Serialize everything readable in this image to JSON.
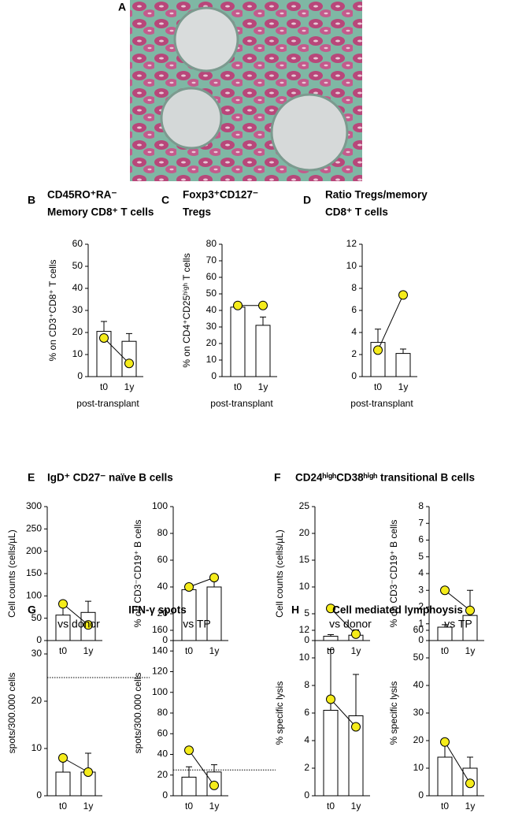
{
  "figure_label": "A",
  "chart_data": [
    {
      "type": "bar",
      "panel": "B",
      "title": [
        "CD45RO⁺RA⁻",
        "Memory CD8⁺ T cells"
      ],
      "ylabel": "% on CD3⁺CD8⁺ T cells",
      "xlabel": "post-transplant",
      "categories": [
        "t0",
        "1y"
      ],
      "values": [
        20.5,
        16
      ],
      "errors": [
        4.5,
        3.5
      ],
      "points": [
        17.5,
        6
      ],
      "color": "#ffffff",
      "point_color": "#f5ec1b",
      "ylim": [
        0,
        60
      ],
      "yticks": [
        0,
        10,
        20,
        30,
        40,
        50,
        60
      ]
    },
    {
      "type": "bar",
      "panel": "C",
      "title": [
        "Foxp3⁺CD127⁻",
        "Tregs"
      ],
      "ylabel": "% on CD4⁺CD25ʰⁱᵍʰ T cells",
      "xlabel": "post-transplant",
      "categories": [
        "t0",
        "1y"
      ],
      "values": [
        42,
        31
      ],
      "errors": [
        3,
        5
      ],
      "points": [
        43,
        43
      ],
      "color": "#ffffff",
      "point_color": "#f5ec1b",
      "ylim": [
        0,
        80
      ],
      "yticks": [
        0,
        10,
        20,
        30,
        40,
        50,
        60,
        70,
        80
      ]
    },
    {
      "type": "bar",
      "panel": "D",
      "title": [
        "Ratio Tregs/memory",
        "CD8⁺ T cells"
      ],
      "xlabel": "post-transplant",
      "categories": [
        "t0",
        "1y"
      ],
      "values": [
        3.1,
        2.1
      ],
      "errors": [
        1.2,
        0.4
      ],
      "points": [
        2.4,
        7.4
      ],
      "color": "#ffffff",
      "point_color": "#f5ec1b",
      "ylim": [
        0,
        12
      ],
      "yticks": [
        0,
        2,
        4,
        6,
        8,
        10,
        12
      ]
    },
    {
      "type": "bar",
      "panel": "E",
      "title": [
        "IgD⁺ CD27⁻ naïve B cells"
      ],
      "ylabel": "Cell counts (cells/µL)",
      "categories": [
        "t0",
        "1y"
      ],
      "values": [
        57,
        63
      ],
      "errors": [
        20,
        25
      ],
      "points": [
        82,
        35
      ],
      "color": "#ffffff",
      "point_color": "#f5ec1b",
      "ylim": [
        0,
        300
      ],
      "yticks": [
        0,
        50,
        100,
        150,
        200,
        250,
        300
      ]
    },
    {
      "type": "bar",
      "ylabel": "% on CD3⁻CD19⁺ B cells",
      "categories": [
        "t0",
        "1y"
      ],
      "values": [
        38,
        40
      ],
      "errors": [
        4,
        7
      ],
      "points": [
        40,
        47
      ],
      "color": "#ffffff",
      "point_color": "#f5ec1b",
      "ylim": [
        0,
        100
      ],
      "yticks": [
        0,
        20,
        40,
        60,
        80,
        100
      ]
    },
    {
      "type": "bar",
      "panel": "F",
      "title": [
        "CD24ʰⁱᵍʰCD38ʰⁱᵍʰ transitional B cells"
      ],
      "ylabel": "Cell counts (cells/µL)",
      "categories": [
        "t0",
        "1y"
      ],
      "values": [
        0.8,
        1
      ],
      "errors": [
        0.3,
        1
      ],
      "points": [
        6,
        1.2
      ],
      "color": "#ffffff",
      "point_color": "#f5ec1b",
      "ylim": [
        0,
        25
      ],
      "yticks": [
        0,
        5,
        10,
        15,
        20,
        25
      ]
    },
    {
      "type": "bar",
      "ylabel": "% on CD3⁻CD19⁺ B cells",
      "categories": [
        "t0",
        "1y"
      ],
      "values": [
        0.8,
        1.5
      ],
      "errors": [
        0.15,
        1.5
      ],
      "points": [
        3,
        1.8
      ],
      "color": "#ffffff",
      "point_color": "#f5ec1b",
      "ylim": [
        0,
        8
      ],
      "yticks": [
        0,
        1,
        2,
        3,
        4,
        5,
        6,
        7,
        8
      ]
    },
    {
      "type": "bar",
      "panel": "G",
      "title": [
        "IFN-γ spots"
      ],
      "subtitle": "vs donor",
      "ylabel": "spots/300.000 cells",
      "categories": [
        "t0",
        "1y"
      ],
      "values": [
        5,
        5
      ],
      "errors": [
        3,
        4
      ],
      "points": [
        8,
        5
      ],
      "color": "#ffffff",
      "point_color": "#f5ec1b",
      "ylim": [
        0,
        35
      ],
      "yticks": [
        0,
        10,
        20,
        30
      ],
      "reference_line": 25
    },
    {
      "type": "bar",
      "subtitle": "vs TP",
      "ylabel": "spots/300.000 cells",
      "categories": [
        "t0",
        "1y"
      ],
      "values": [
        18,
        23
      ],
      "errors": [
        10,
        7
      ],
      "points": [
        44,
        10
      ],
      "color": "#ffffff",
      "point_color": "#f5ec1b",
      "ylim": [
        0,
        160
      ],
      "yticks": [
        0,
        20,
        40,
        60,
        80,
        100,
        120,
        140,
        160
      ],
      "reference_line": 25
    },
    {
      "type": "bar",
      "panel": "H",
      "title": [
        "Cell mediated lymphoysis"
      ],
      "subtitle": "vs donor",
      "ylabel": "% specific lysis",
      "categories": [
        "t0",
        "1y"
      ],
      "values": [
        6.2,
        5.8
      ],
      "errors": [
        4.4,
        3
      ],
      "points": [
        7,
        5
      ],
      "color": "#ffffff",
      "point_color": "#f5ec1b",
      "ylim": [
        0,
        12
      ],
      "yticks": [
        0,
        2,
        4,
        6,
        8,
        10,
        12
      ]
    },
    {
      "type": "bar",
      "subtitle": "vs TP",
      "ylabel": "% specific lysis",
      "categories": [
        "t0",
        "1y"
      ],
      "values": [
        14,
        10
      ],
      "errors": [
        6,
        4
      ],
      "points": [
        19.5,
        4.5
      ],
      "color": "#ffffff",
      "point_color": "#f5ec1b",
      "ylim": [
        0,
        60
      ],
      "yticks": [
        0,
        10,
        20,
        30,
        40,
        50,
        60
      ]
    }
  ]
}
